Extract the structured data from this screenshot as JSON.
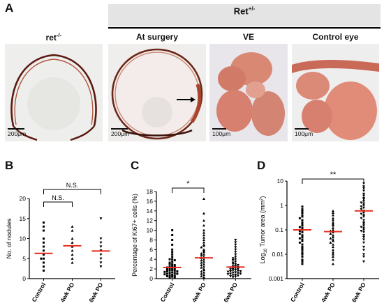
{
  "panel_a": {
    "label": "A",
    "group_header": "Ret",
    "group_header_sup": "+/-",
    "col1_title": "ret",
    "col1_title_sup": "-/-",
    "col2_title": "At surgery",
    "col3_title": "VE",
    "col4_title": "Control eye",
    "scales": [
      "200μm",
      "200μm",
      "100μm",
      "100μm"
    ]
  },
  "panel_b": {
    "label": "B"
  },
  "panel_c": {
    "label": "C"
  },
  "panel_d": {
    "label": "D"
  },
  "chart_data": [
    {
      "type": "scatter",
      "panel": "B",
      "ylabel": "No. of nodules",
      "ylim": [
        0,
        20
      ],
      "yticks": [
        "0",
        "5",
        "10",
        "15",
        "20"
      ],
      "categories": [
        "Control",
        "4wk PO",
        "6wk PO"
      ],
      "means": [
        6.3,
        8.2,
        6.9
      ],
      "points": [
        [
          14,
          13,
          12,
          10,
          9,
          8,
          7,
          6,
          5,
          5,
          4,
          3,
          2
        ],
        [
          13,
          12,
          10,
          9,
          8,
          7,
          6,
          5,
          4
        ],
        [
          15,
          10,
          9,
          8,
          7,
          6,
          5,
          4,
          3
        ]
      ],
      "annotations": [
        {
          "text": "N.S.",
          "from": 0,
          "to": 1
        },
        {
          "text": "N.S.",
          "from": 0,
          "to": 2
        }
      ]
    },
    {
      "type": "scatter",
      "panel": "C",
      "ylabel": "Percentage of Ki67+ cells (%)",
      "ylim": [
        0,
        18
      ],
      "yticks": [
        "0",
        "2",
        "4",
        "6",
        "8",
        "10",
        "12",
        "14",
        "16",
        "18"
      ],
      "categories": [
        "Control",
        "4wk PO",
        "6wk PO"
      ],
      "means": [
        2.3,
        4.3,
        2.4
      ],
      "points": [
        [
          10,
          9,
          8,
          7,
          6,
          5.5,
          5,
          4.5,
          4,
          4,
          3.8,
          3.5,
          3.3,
          3,
          3,
          2.8,
          2.6,
          2.5,
          2.4,
          2.3,
          2.2,
          2,
          2,
          1.9,
          1.8,
          1.7,
          1.6,
          1.5,
          1.5,
          1.4,
          1.3,
          1.2,
          1.1,
          1,
          1,
          0.9,
          0.8,
          0.7,
          0.6,
          0.5,
          0.4,
          0.3,
          0.2
        ],
        [
          16.5,
          13.5,
          12,
          11,
          10,
          9.5,
          9,
          8.5,
          8,
          7.5,
          7,
          6.8,
          6.5,
          6,
          5.8,
          5.5,
          5.2,
          5,
          4.8,
          4.5,
          4.3,
          4,
          3.8,
          3.5,
          3.3,
          3,
          2.8,
          2.5,
          2.3,
          2,
          1.8,
          1.5,
          1.3,
          1,
          0.8,
          0.5,
          0.3
        ],
        [
          8,
          7.5,
          7,
          6.5,
          6,
          5.5,
          5,
          4.5,
          4.2,
          4,
          3.8,
          3.5,
          3.3,
          3,
          3,
          2.8,
          2.6,
          2.5,
          2.4,
          2.3,
          2.2,
          2,
          2,
          1.9,
          1.8,
          1.7,
          1.6,
          1.5,
          1.5,
          1.4,
          1.3,
          1.2,
          1.1,
          1,
          1,
          0.9,
          0.8,
          0.7,
          0.6,
          0.5,
          0.4,
          0.3
        ]
      ],
      "annotations": [
        {
          "text": "*",
          "from": 0,
          "to": 1
        }
      ]
    },
    {
      "type": "scatter",
      "panel": "D",
      "ylabel": "Log10 Tumor area (mm2)",
      "yscale": "log",
      "ylim": [
        0.001,
        10
      ],
      "yticks": [
        "0.001",
        "0.01",
        "0.1",
        "1",
        "10"
      ],
      "categories": [
        "Control",
        "4wk PO",
        "6wk PO"
      ],
      "means": [
        0.1,
        0.085,
        0.6
      ],
      "points": [
        [
          0.9,
          0.7,
          0.6,
          0.5,
          0.4,
          0.35,
          0.3,
          0.25,
          0.2,
          0.18,
          0.15,
          0.13,
          0.12,
          0.1,
          0.09,
          0.08,
          0.07,
          0.06,
          0.05,
          0.045,
          0.04,
          0.035,
          0.03,
          0.025,
          0.02,
          0.018,
          0.015,
          0.012,
          0.01,
          0.008,
          0.006,
          0.005,
          0.004
        ],
        [
          0.6,
          0.5,
          0.4,
          0.3,
          0.25,
          0.2,
          0.17,
          0.15,
          0.12,
          0.1,
          0.09,
          0.08,
          0.07,
          0.06,
          0.05,
          0.045,
          0.04,
          0.035,
          0.03,
          0.025,
          0.02,
          0.015,
          0.012,
          0.01,
          0.008,
          0.006,
          0.004
        ],
        [
          8,
          6,
          5,
          4,
          3,
          2.5,
          2,
          1.8,
          1.5,
          1.3,
          1.2,
          1,
          0.9,
          0.8,
          0.7,
          0.6,
          0.5,
          0.45,
          0.4,
          0.35,
          0.3,
          0.25,
          0.2,
          0.18,
          0.15,
          0.13,
          0.12,
          0.1,
          0.09,
          0.08,
          0.06,
          0.05,
          0.04,
          0.03,
          0.02,
          0.015,
          0.01,
          0.008,
          0.005
        ]
      ],
      "annotations": [
        {
          "text": "**",
          "from": 0,
          "to": 2
        }
      ]
    }
  ]
}
